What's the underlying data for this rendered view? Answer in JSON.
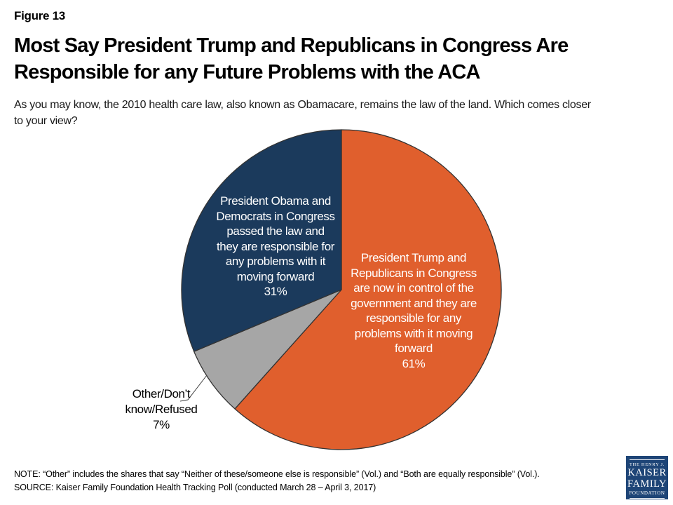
{
  "figure_label": "Figure 13",
  "title": "Most Say President Trump and Republicans in Congress Are\nResponsible for any Future Problems with the ACA",
  "subtitle": "As you may know, the 2010 health care law, also known as Obamacare, remains the law of the land. Which comes closer\nto your view?",
  "footer": {
    "note": "NOTE: “Other” includes the shares that say “Neither of these/someone else is responsible” (Vol.) and “Both are equally responsible” (Vol.).",
    "source": "SOURCE: Kaiser Family Foundation Health Tracking Poll (conducted March 28 – April 3, 2017)"
  },
  "logo": {
    "line1": "THE HENRY J.",
    "line2": "KAISER",
    "line3": "FAMILY",
    "line4": "FOUNDATION",
    "bg_color": "#1E4577"
  },
  "chart_data": {
    "type": "pie",
    "start_position": "12-o'clock",
    "direction": "clockwise",
    "outline_color": "#333333",
    "legend_position": "none",
    "categories": [
      "President Trump and Republicans in Congress are now in control of the government and they are responsible for any problems with it moving forward",
      "Other/Don't know/Refused",
      "President Obama and Democrats in Congress passed the law and they are responsible for any problems with it moving forward"
    ],
    "values": [
      61,
      7,
      31
    ],
    "slices": [
      {
        "name": "trump-republicans",
        "value": 61,
        "pct_label": "61%",
        "color": "#E05F2D",
        "label": "President Trump and\nRepublicans in Congress\nare now in control of the\ngovernment and they are\nresponsible for any\nproblems with it moving\nforward\n61%"
      },
      {
        "name": "other-dont-know-refused",
        "value": 7,
        "pct_label": "7%",
        "color": "#A6A6A6",
        "label": "Other/Don’t\nknow/Refused\n7%"
      },
      {
        "name": "obama-democrats",
        "value": 31,
        "pct_label": "31%",
        "color": "#1B3A5C",
        "label": "President Obama and\nDemocrats in Congress\npassed the law and\nthey are responsible for\nany problems with it\nmoving forward\n31%"
      }
    ]
  }
}
